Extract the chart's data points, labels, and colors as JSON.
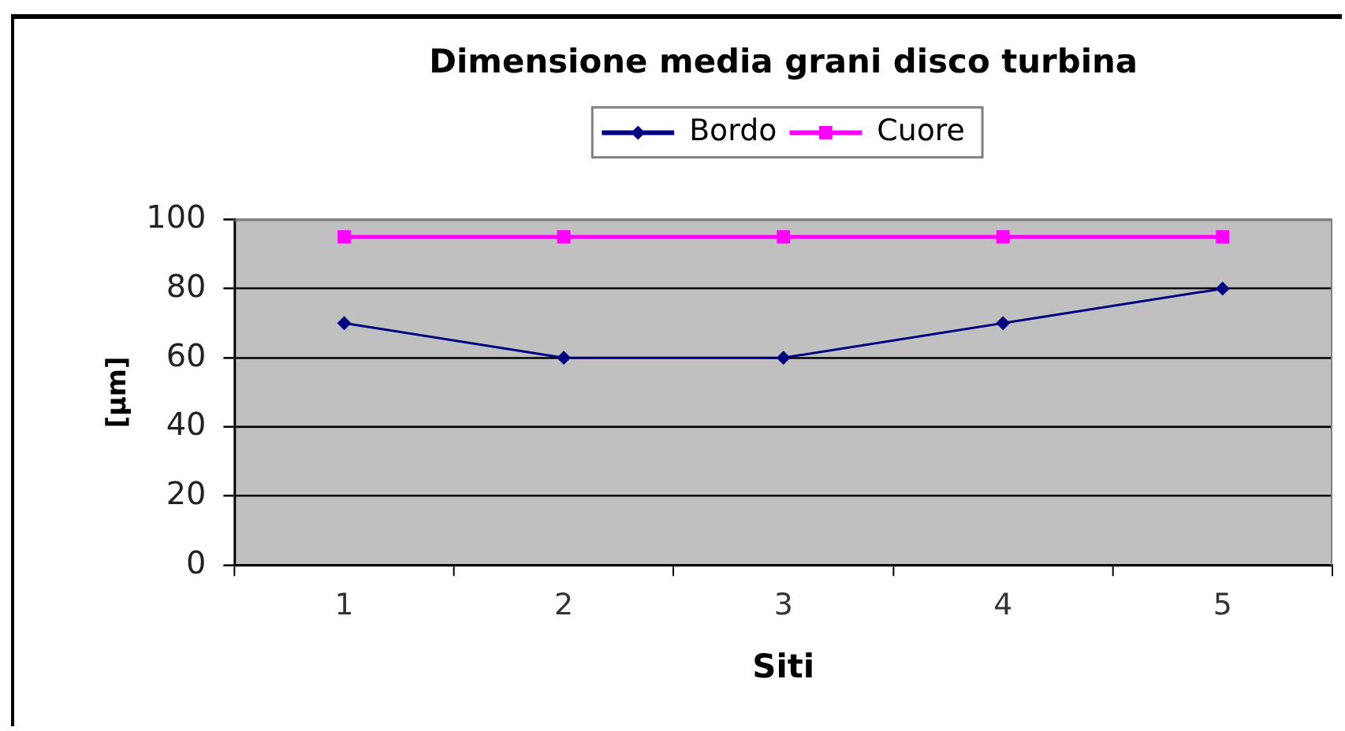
{
  "chart_data": {
    "type": "line",
    "title": "Dimensione media grani disco turbina",
    "xlabel": "Siti",
    "ylabel": "[µm]",
    "categories": [
      "1",
      "2",
      "3",
      "4",
      "5"
    ],
    "series": [
      {
        "name": "Bordo",
        "color": "#000080",
        "marker": "diamond",
        "values": [
          70,
          60,
          60,
          70,
          80
        ]
      },
      {
        "name": "Cuore",
        "color": "#ff00ff",
        "marker": "square",
        "values": [
          95,
          95,
          95,
          95,
          95
        ]
      }
    ],
    "ylim": [
      0,
      100
    ],
    "yticks": [
      0,
      20,
      40,
      60,
      80,
      100
    ],
    "grid": "y",
    "legend": "top"
  }
}
